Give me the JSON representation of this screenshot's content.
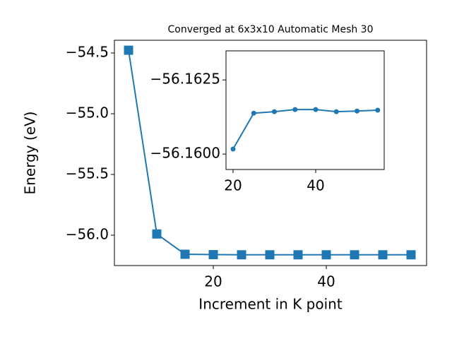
{
  "chart_data": [
    {
      "type": "line",
      "title": "Converged at 6x3x10 Automatic Mesh 30",
      "x_label": "Increment in K point",
      "y_label": "Energy (eV)",
      "x": [
        5,
        10,
        15,
        20,
        25,
        30,
        35,
        40,
        45,
        50,
        55
      ],
      "series": [
        {
          "color": "#1f77b4",
          "marker": "square",
          "values": [
            -54.477,
            -55.99,
            -56.157,
            -56.16017,
            -56.16138,
            -56.16143,
            -56.1615,
            -56.1615,
            -56.16143,
            -56.16145,
            -56.16148
          ]
        }
      ],
      "xlim": [
        2.5,
        57.75
      ],
      "xticks": [
        20,
        40
      ],
      "ylim": [
        -56.25,
        -54.395
      ],
      "yticks": [
        {
          "value": -56.0,
          "label": "−56.0"
        },
        {
          "value": -55.5,
          "label": "−55.5"
        },
        {
          "value": -55.0,
          "label": "−55.0"
        },
        {
          "value": -54.5,
          "label": "−54.5"
        }
      ]
    },
    {
      "type": "line",
      "x": [
        20,
        25,
        30,
        35,
        40,
        45,
        50,
        55
      ],
      "series": [
        {
          "color": "#1f77b4",
          "marker": "circle",
          "values": [
            -56.16017,
            -56.16138,
            -56.16143,
            -56.1615,
            -56.1615,
            -56.16143,
            -56.16145,
            -56.16148
          ]
        }
      ],
      "xlim": [
        18.29,
        56.58
      ],
      "xticks": [
        20,
        40
      ],
      "ylim": [
        -56.15948,
        -56.16348
      ],
      "yticks": [
        {
          "value": -56.16,
          "label": "−56.1600"
        },
        {
          "value": -56.1625,
          "label": "−56.1625"
        }
      ]
    }
  ]
}
